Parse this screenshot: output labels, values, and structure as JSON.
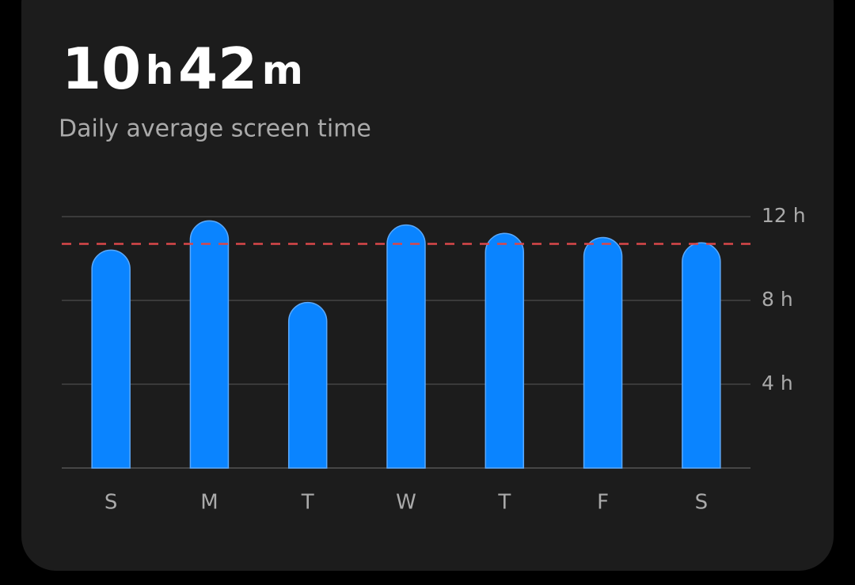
{
  "chart_data": {
    "type": "bar",
    "headline": {
      "hours": "10",
      "hours_unit": "h",
      "minutes": "42",
      "minutes_unit": "m"
    },
    "subtitle": "Daily average screen time",
    "categories": [
      "S",
      "M",
      "T",
      "W",
      "T",
      "F",
      "S"
    ],
    "values": [
      10.4,
      11.8,
      7.9,
      11.6,
      11.2,
      11.0,
      10.75
    ],
    "average": 10.7,
    "color": "#0a84ff",
    "average_color": "#d9474a",
    "ylim": [
      0,
      12
    ],
    "yticks": [
      {
        "value": 4,
        "label": "4 h"
      },
      {
        "value": 8,
        "label": "8 h"
      },
      {
        "value": 12,
        "label": "12 h"
      }
    ],
    "grid": true
  }
}
